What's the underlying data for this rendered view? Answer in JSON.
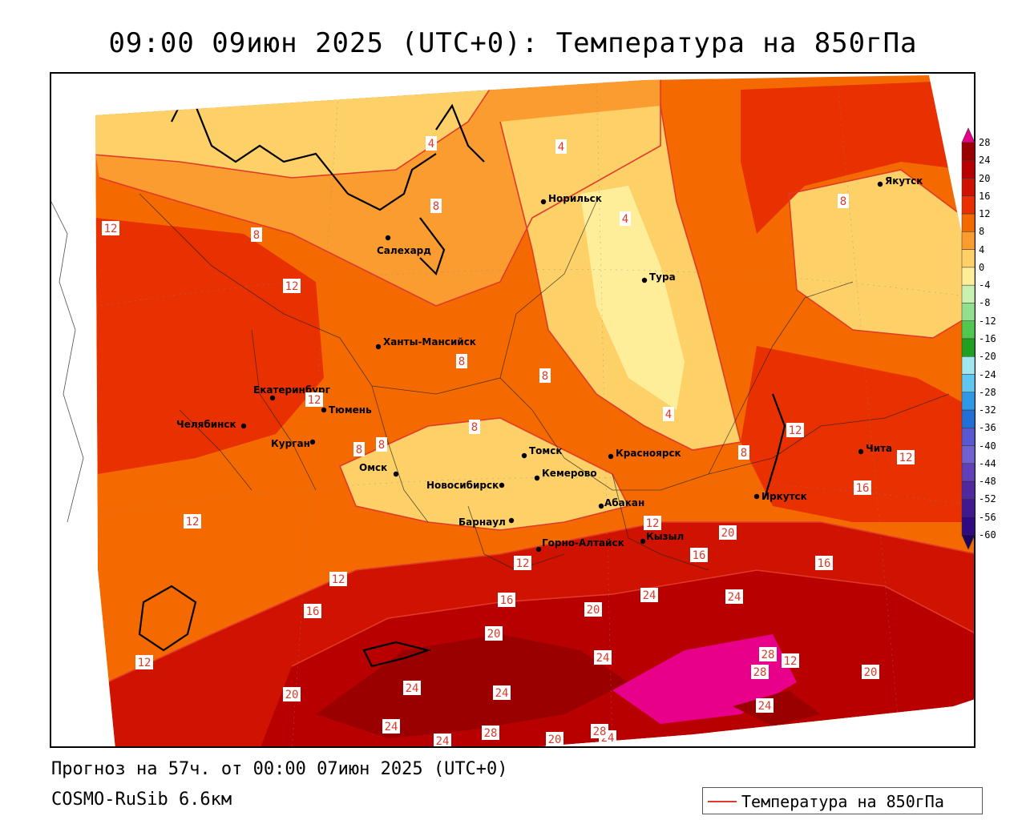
{
  "header": {
    "title": "09:00 09июн 2025 (UTC+0): Температура на 850гПа"
  },
  "footer": {
    "forecast": "Прогноз на 57ч. от 00:00 07июн 2025 (UTC+0)",
    "model": "COSMO-RuSib 6.6км"
  },
  "legend": {
    "label": "Температура на 850гПа",
    "line_color": "#e03a2a"
  },
  "colorbar": {
    "labels": [
      "28",
      "24",
      "20",
      "16",
      "12",
      "8",
      "4",
      "0",
      "-4",
      "-8",
      "-12",
      "-16",
      "-20",
      "-24",
      "-28",
      "-32",
      "-36",
      "-40",
      "-44",
      "-48",
      "-52",
      "-56",
      "-60"
    ],
    "colors": [
      "#9b0000",
      "#b80000",
      "#d01200",
      "#e83000",
      "#f56a00",
      "#fb9c30",
      "#fdd068",
      "#ffee99",
      "#c8f0b0",
      "#90e090",
      "#50c850",
      "#20a020",
      "#a0e8f0",
      "#60c8f0",
      "#3098e8",
      "#2070d8",
      "#5858d0",
      "#7060d0",
      "#6040b8",
      "#5028a0",
      "#401890",
      "#300a80"
    ]
  },
  "cities": [
    {
      "name": "Норильск"
    },
    {
      "name": "Якутск"
    },
    {
      "name": "Салехард"
    },
    {
      "name": "Тура"
    },
    {
      "name": "Ханты-Мансийск"
    },
    {
      "name": "Екатеринбург"
    },
    {
      "name": "Тюмень"
    },
    {
      "name": "Челябинск"
    },
    {
      "name": "Курган"
    },
    {
      "name": "Омск"
    },
    {
      "name": "Томск"
    },
    {
      "name": "Красноярск"
    },
    {
      "name": "Новосибирск"
    },
    {
      "name": "Кемерово"
    },
    {
      "name": "Абакан"
    },
    {
      "name": "Иркутск"
    },
    {
      "name": "Чита"
    },
    {
      "name": "Барнаул"
    },
    {
      "name": "Горно-Алтайск"
    },
    {
      "name": "Кызыл"
    }
  ],
  "isotherm_labels": [
    "4",
    "4",
    "4",
    "8",
    "12",
    "8",
    "12",
    "8",
    "8",
    "8",
    "12",
    "8",
    "8",
    "4",
    "8",
    "12",
    "12",
    "16",
    "8",
    "12",
    "12",
    "12",
    "20",
    "16",
    "16",
    "12",
    "12",
    "16",
    "16",
    "20",
    "24",
    "24",
    "20",
    "20",
    "24",
    "24",
    "12",
    "24",
    "28",
    "24",
    "24",
    "28",
    "20",
    "24",
    "24",
    "28",
    "20",
    "28"
  ]
}
